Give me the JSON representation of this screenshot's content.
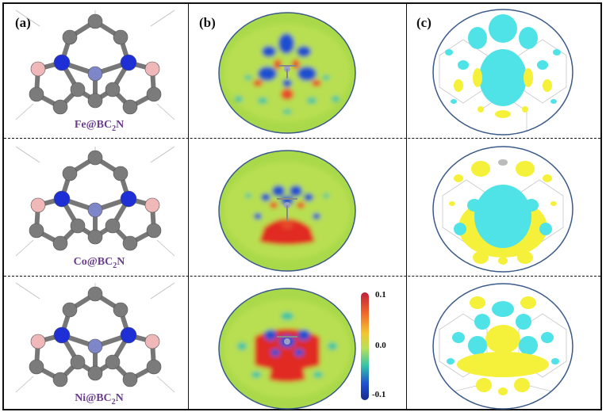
{
  "panels": {
    "a": "(a)",
    "b": "(b)",
    "c": "(c)"
  },
  "rows": [
    {
      "metal": "Fe",
      "formula_prefix": "@BC",
      "formula_sub": "2",
      "formula_suffix": "N"
    },
    {
      "metal": "Co",
      "formula_prefix": "@BC",
      "formula_sub": "2",
      "formula_suffix": "N"
    },
    {
      "metal": "Ni",
      "formula_prefix": "@BC",
      "formula_sub": "2",
      "formula_suffix": "N"
    }
  ],
  "colorbar": {
    "max_label": "0.1",
    "mid_label": "0.0",
    "min_label": "-0.1",
    "colors": [
      "#c0203a",
      "#f26a2a",
      "#f3c632",
      "#b8e05a",
      "#34c3a8",
      "#1e4fd0",
      "#1a2a8c"
    ]
  },
  "atom_colors": {
    "carbon": "#7b7b7b",
    "nitrogen": "#1f2fd6",
    "boron": "#f0b8b8",
    "metal": "#7c86c8"
  },
  "isosurface_colors": {
    "cyan": "#4fe3e8",
    "yellow": "#f5f03a"
  }
}
